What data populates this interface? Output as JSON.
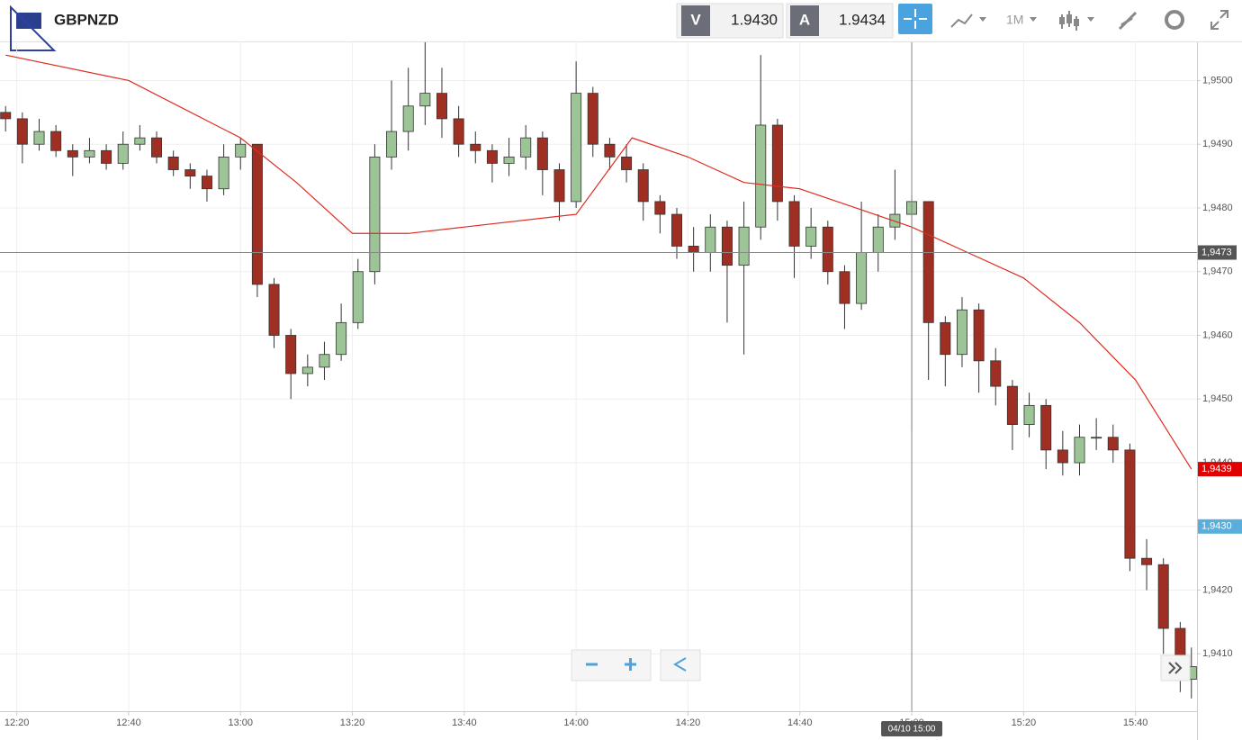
{
  "header": {
    "symbol": "GBPNZD",
    "bid_label": "V",
    "bid": "1.9430",
    "ask_label": "A",
    "ask": "1.9434",
    "interval": "1M"
  },
  "chart_data": {
    "type": "candlestick",
    "up_color": "#9cc496",
    "down_color": "#9e2f22",
    "edge_color": "#333",
    "x": [
      "12:18",
      "12:21",
      "12:24",
      "12:27",
      "12:30",
      "12:33",
      "12:36",
      "12:39",
      "12:42",
      "12:45",
      "12:48",
      "12:51",
      "12:54",
      "12:57",
      "13:00",
      "13:03",
      "13:06",
      "13:09",
      "13:12",
      "13:15",
      "13:18",
      "13:21",
      "13:24",
      "13:27",
      "13:30",
      "13:33",
      "13:36",
      "13:39",
      "13:42",
      "13:45",
      "13:48",
      "13:51",
      "13:54",
      "13:57",
      "14:00",
      "14:03",
      "14:06",
      "14:09",
      "14:12",
      "14:15",
      "14:18",
      "14:21",
      "14:24",
      "14:27",
      "14:30",
      "14:33",
      "14:36",
      "14:39",
      "14:42",
      "14:45",
      "14:48",
      "14:51",
      "14:54",
      "14:57",
      "15:00",
      "15:03",
      "15:06",
      "15:09",
      "15:12",
      "15:15",
      "15:18",
      "15:21",
      "15:24",
      "15:27",
      "15:30",
      "15:33",
      "15:36",
      "15:39",
      "15:42",
      "15:45",
      "15:48",
      "15:50"
    ],
    "open": [
      1.9495,
      1.9494,
      1.949,
      1.9492,
      1.9489,
      1.9488,
      1.9489,
      1.9487,
      1.949,
      1.9491,
      1.9488,
      1.9486,
      1.9485,
      1.9483,
      1.9488,
      1.949,
      1.9468,
      1.946,
      1.9454,
      1.9455,
      1.9457,
      1.9462,
      1.947,
      1.9488,
      1.9492,
      1.9496,
      1.9498,
      1.9494,
      1.949,
      1.9489,
      1.9487,
      1.9488,
      1.9491,
      1.9486,
      1.9481,
      1.9498,
      1.949,
      1.9488,
      1.9486,
      1.9481,
      1.9479,
      1.9474,
      1.9473,
      1.9477,
      1.9471,
      1.9477,
      1.9493,
      1.9481,
      1.9474,
      1.9477,
      1.947,
      1.9465,
      1.9473,
      1.9477,
      1.9479,
      1.9481,
      1.9462,
      1.9457,
      1.9464,
      1.9456,
      1.9452,
      1.9446,
      1.9449,
      1.9442,
      1.944,
      1.9444,
      1.9444,
      1.9442,
      1.9425,
      1.9424,
      1.9414,
      1.9406
    ],
    "high": [
      1.9496,
      1.9495,
      1.9494,
      1.9493,
      1.949,
      1.9491,
      1.949,
      1.9492,
      1.9493,
      1.9492,
      1.9489,
      1.9487,
      1.9486,
      1.949,
      1.9491,
      1.949,
      1.9469,
      1.9461,
      1.9457,
      1.9459,
      1.9465,
      1.9472,
      1.949,
      1.95,
      1.9502,
      1.9506,
      1.9502,
      1.9496,
      1.9492,
      1.949,
      1.9491,
      1.9493,
      1.9492,
      1.9487,
      1.9503,
      1.9499,
      1.9491,
      1.949,
      1.9487,
      1.9482,
      1.948,
      1.9477,
      1.9479,
      1.9478,
      1.9481,
      1.9504,
      1.9494,
      1.9482,
      1.948,
      1.9478,
      1.9471,
      1.9481,
      1.9479,
      1.9486,
      1.9482,
      1.9481,
      1.9463,
      1.9466,
      1.9465,
      1.9458,
      1.9453,
      1.9451,
      1.945,
      1.9445,
      1.9446,
      1.9447,
      1.9446,
      1.9443,
      1.9428,
      1.9425,
      1.9415,
      1.9411
    ],
    "low": [
      1.9492,
      1.9487,
      1.9489,
      1.9488,
      1.9485,
      1.9487,
      1.9486,
      1.9486,
      1.9489,
      1.9487,
      1.9485,
      1.9483,
      1.9481,
      1.9482,
      1.9486,
      1.9466,
      1.9458,
      1.945,
      1.9452,
      1.9453,
      1.9456,
      1.9461,
      1.9468,
      1.9486,
      1.9489,
      1.9493,
      1.9491,
      1.9488,
      1.9487,
      1.9484,
      1.9485,
      1.9486,
      1.9482,
      1.9478,
      1.948,
      1.9488,
      1.9486,
      1.9484,
      1.9478,
      1.9476,
      1.9472,
      1.947,
      1.947,
      1.9462,
      1.9457,
      1.9475,
      1.9478,
      1.9469,
      1.9472,
      1.9468,
      1.9461,
      1.9464,
      1.947,
      1.9475,
      1.9445,
      1.9453,
      1.9452,
      1.9455,
      1.9451,
      1.9449,
      1.9442,
      1.9444,
      1.9439,
      1.9438,
      1.9438,
      1.9442,
      1.944,
      1.9423,
      1.942,
      1.941,
      1.9404,
      1.9403
    ],
    "close": [
      1.9494,
      1.949,
      1.9492,
      1.9489,
      1.9488,
      1.9489,
      1.9487,
      1.949,
      1.9491,
      1.9488,
      1.9486,
      1.9485,
      1.9483,
      1.9488,
      1.949,
      1.9468,
      1.946,
      1.9454,
      1.9455,
      1.9457,
      1.9462,
      1.947,
      1.9488,
      1.9492,
      1.9496,
      1.9498,
      1.9494,
      1.949,
      1.9489,
      1.9487,
      1.9488,
      1.9491,
      1.9486,
      1.9481,
      1.9498,
      1.949,
      1.9488,
      1.9486,
      1.9481,
      1.9479,
      1.9474,
      1.9473,
      1.9477,
      1.9471,
      1.9477,
      1.9493,
      1.9481,
      1.9474,
      1.9477,
      1.947,
      1.9465,
      1.9473,
      1.9477,
      1.9479,
      1.9481,
      1.9462,
      1.9457,
      1.9464,
      1.9456,
      1.9452,
      1.9446,
      1.9449,
      1.9442,
      1.944,
      1.9444,
      1.9444,
      1.9442,
      1.9425,
      1.9424,
      1.9414,
      1.9406,
      1.9408
    ],
    "ma": {
      "color": "#e02b20",
      "x": [
        "12:18",
        "12:40",
        "13:00",
        "13:10",
        "13:20",
        "13:30",
        "13:40",
        "14:00",
        "14:10",
        "14:20",
        "14:30",
        "14:40",
        "14:50",
        "15:00",
        "15:10",
        "15:20",
        "15:30",
        "15:40",
        "15:50"
      ],
      "values": [
        1.9504,
        1.95,
        1.9491,
        1.9484,
        1.9476,
        1.9476,
        1.9477,
        1.9479,
        1.9491,
        1.9488,
        1.9484,
        1.9483,
        1.948,
        1.9477,
        1.9473,
        1.9469,
        1.9462,
        1.9453,
        1.9439
      ]
    },
    "xlim": [
      "12:17",
      "15:51"
    ],
    "xticks": [
      "12:20",
      "12:40",
      "13:00",
      "13:20",
      "13:40",
      "14:00",
      "14:20",
      "14:40",
      "15:00",
      "15:20",
      "15:40"
    ],
    "ylim": [
      1.9401,
      1.9506
    ],
    "yticks": [
      {
        "value": 1.941,
        "label": "1,9410"
      },
      {
        "value": 1.942,
        "label": "1,9420"
      },
      {
        "value": 1.943,
        "label": "1,9430"
      },
      {
        "value": 1.944,
        "label": "1,9440"
      },
      {
        "value": 1.945,
        "label": "1,9450"
      },
      {
        "value": 1.946,
        "label": "1,9460"
      },
      {
        "value": 1.947,
        "label": "1,9470"
      },
      {
        "value": 1.948,
        "label": "1,9480"
      },
      {
        "value": 1.949,
        "label": "1,9490"
      },
      {
        "value": 1.95,
        "label": "1,9500"
      }
    ],
    "grid": true,
    "crosshair": {
      "x": "15:00",
      "x_label": "04/10 15:00",
      "y": {
        "value": 1.9473,
        "label": "1,9473"
      }
    },
    "price_lines": [
      {
        "value": 1.9439,
        "label": "1,9439",
        "color": "#e00000"
      },
      {
        "value": 1.943,
        "label": "1,9430",
        "color": "#5aaedc"
      }
    ]
  }
}
